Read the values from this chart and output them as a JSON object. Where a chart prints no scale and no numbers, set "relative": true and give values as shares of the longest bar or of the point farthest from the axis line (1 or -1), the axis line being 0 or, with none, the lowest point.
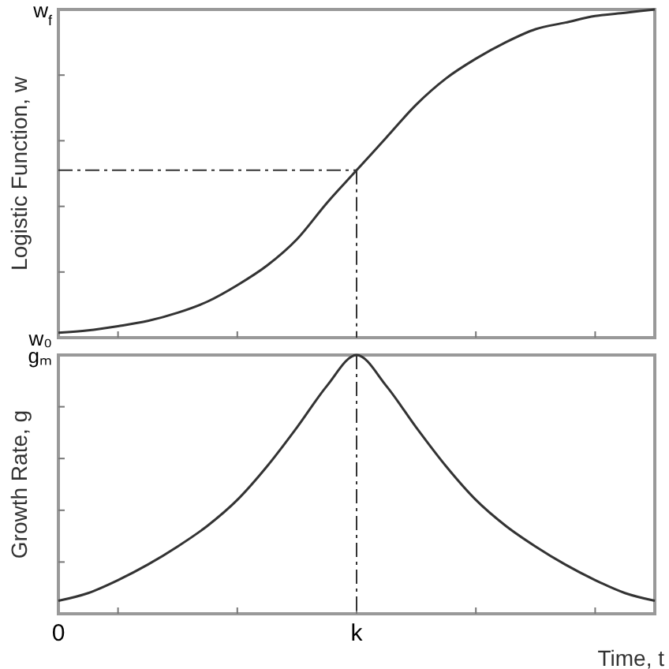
{
  "chart_data": [
    {
      "type": "line",
      "relative": true,
      "ylabel": "Logistic Function, w",
      "annotations": [
        "w$_{f}$",
        "w₀"
      ],
      "categories": [
        "0",
        null,
        null,
        null,
        null,
        null,
        null,
        null,
        null,
        null,
        "k",
        null,
        null,
        null,
        null,
        null,
        null,
        null,
        null,
        null,
        null
      ],
      "series": [
        {
          "color": "#333333",
          "values": [
            0.015,
            0.022,
            0.035,
            0.051,
            0.076,
            0.11,
            0.16,
            0.22,
            0.3,
            0.41,
            0.51,
            0.61,
            0.71,
            0.79,
            0.85,
            0.9,
            0.94,
            0.96,
            0.98,
            0.99,
            1
          ]
        }
      ],
      "tick_labels": "y",
      "grid": false,
      "line_style": "solid",
      "ref_lines": [
        {
          "axis": "y",
          "value": 0.51,
          "color": "#333333",
          "line_style": "dashed"
        },
        {
          "axis": "x",
          "value": "k",
          "color": "#333333",
          "line_style": "dashed"
        }
      ]
    },
    {
      "type": "line",
      "relative": true,
      "ylabel": "Growth Rate, g",
      "xlabel": "Time, t",
      "annotations": [
        "gₘ"
      ],
      "categories": [
        "0",
        null,
        null,
        null,
        null,
        null,
        null,
        null,
        null,
        null,
        "k",
        null,
        null,
        null,
        null,
        null,
        null,
        null,
        null,
        null,
        null
      ],
      "series": [
        {
          "color": "#333333",
          "values": [
            0.05,
            0.08,
            0.13,
            0.19,
            0.26,
            0.34,
            0.44,
            0.57,
            0.72,
            0.88,
            1,
            0.88,
            0.72,
            0.57,
            0.44,
            0.34,
            0.26,
            0.19,
            0.13,
            0.08,
            0.05
          ]
        }
      ],
      "grid": false,
      "line_style": "solid",
      "ref_lines": [
        {
          "axis": "x",
          "value": "k",
          "color": "#333333",
          "line_style": "dashed"
        }
      ]
    }
  ]
}
